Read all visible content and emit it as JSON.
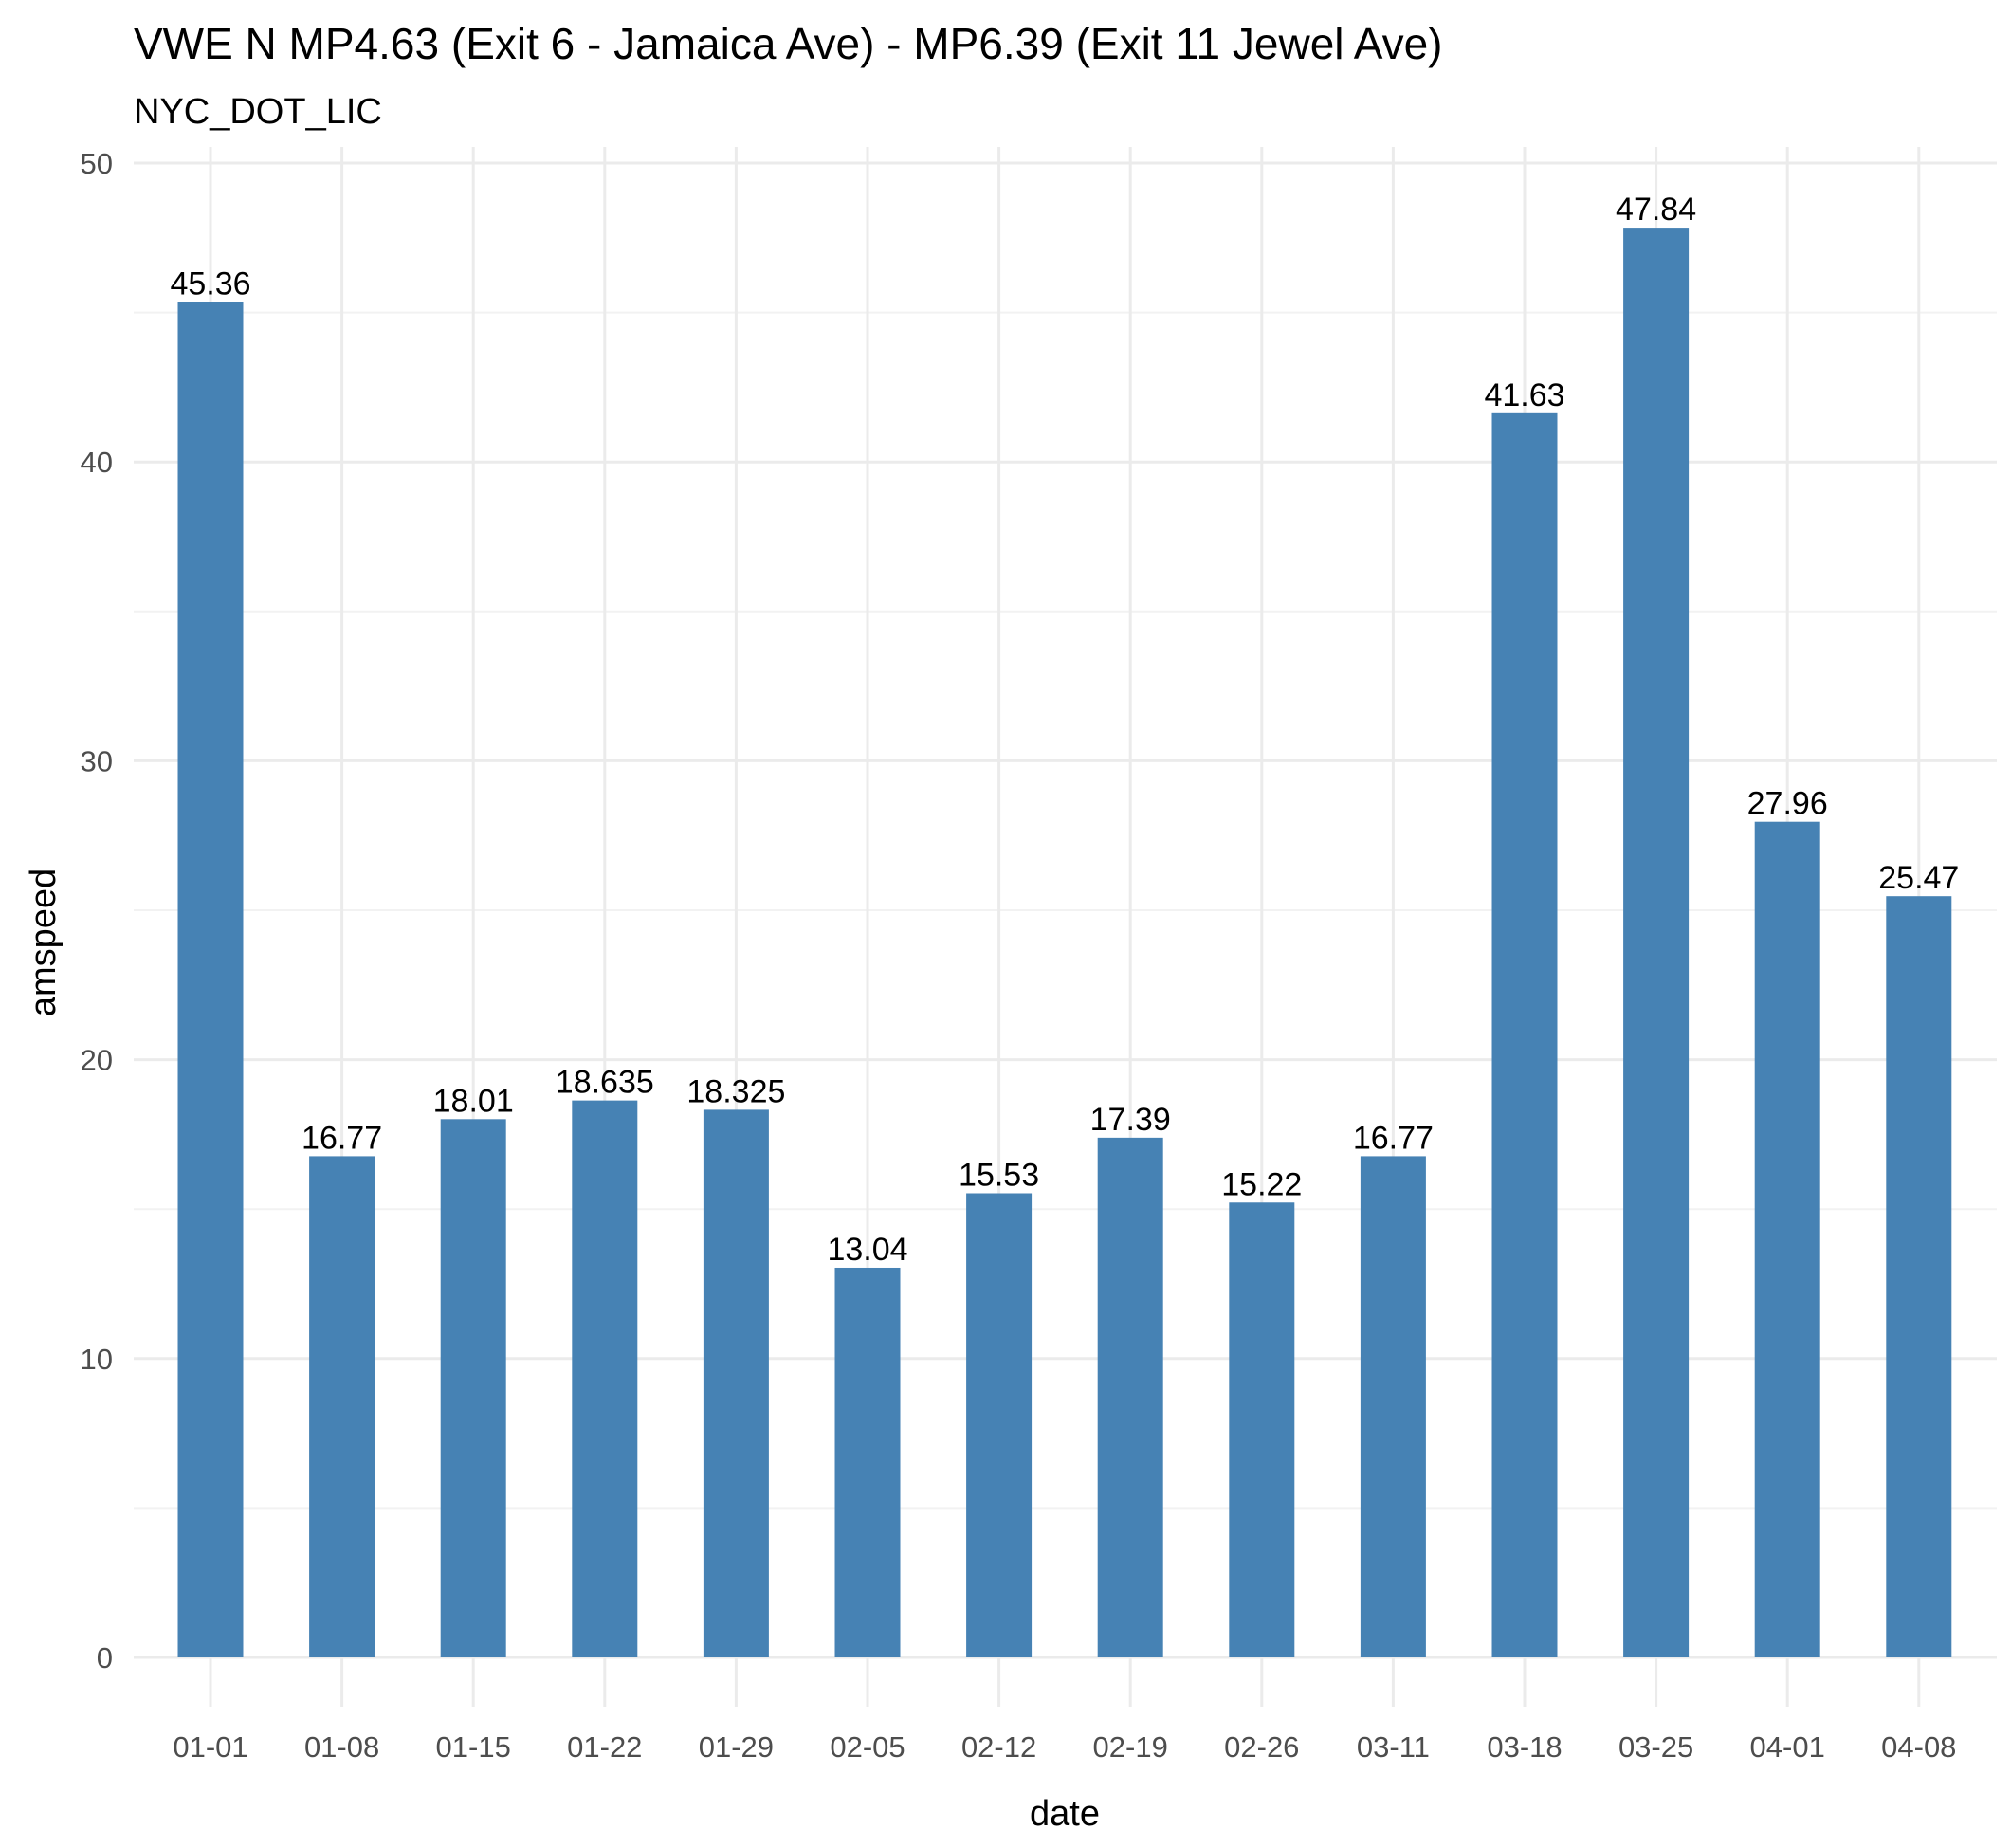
{
  "chart_data": {
    "type": "bar",
    "title": "VWE N MP4.63 (Exit 6 - Jamaica Ave) - MP6.39 (Exit 11 Jewel Ave)",
    "subtitle": "NYC_DOT_LIC",
    "xlabel": "date",
    "ylabel": "amspeed",
    "categories": [
      "01-01",
      "01-08",
      "01-15",
      "01-22",
      "01-29",
      "02-05",
      "02-12",
      "02-19",
      "02-26",
      "03-11",
      "03-18",
      "03-25",
      "04-01",
      "04-08"
    ],
    "values": [
      45.36,
      16.77,
      18.01,
      18.635,
      18.325,
      13.04,
      15.53,
      17.39,
      15.22,
      16.77,
      41.63,
      47.84,
      27.96,
      25.47
    ],
    "data_labels": [
      "45.36",
      "16.77",
      "18.01",
      "18.635",
      "18.325",
      "13.04",
      "15.53",
      "17.39",
      "15.22",
      "16.77",
      "41.63",
      "47.84",
      "27.96",
      "25.47"
    ],
    "ylim": [
      0,
      50
    ],
    "yticks": [
      0,
      10,
      20,
      30,
      40,
      50
    ],
    "grid": true,
    "legend": "none",
    "bar_color": "#4682B4"
  }
}
